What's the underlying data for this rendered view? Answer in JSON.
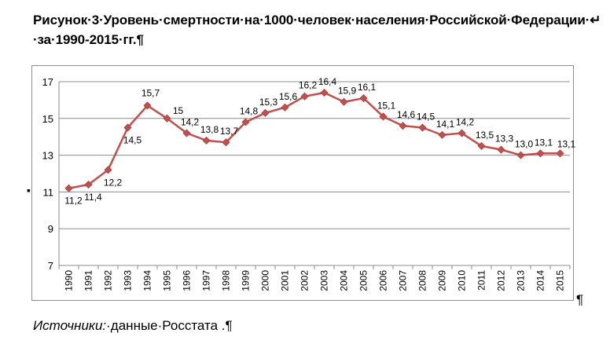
{
  "title": {
    "line1": "Рисунок·3·Уровень·смертности·на·1000·человек·населения·Российской·Федерации·↵",
    "line2": "·за·1990-2015·гг.¶"
  },
  "source": {
    "label": "Источники:",
    "text": "·данные·Росстата .¶"
  },
  "page_marks": {
    "pilcrow": "¶",
    "bullet": "▪"
  },
  "chart_data": {
    "type": "line",
    "title": "",
    "xlabel": "",
    "ylabel": "",
    "ylim": [
      7,
      17
    ],
    "yticks": [
      7,
      9,
      11,
      13,
      15,
      17
    ],
    "grid": true,
    "legend": "none",
    "line_color": "#c0504d",
    "categories": [
      "1990",
      "1991",
      "1992",
      "1993",
      "1994",
      "1995",
      "1996",
      "1997",
      "1998",
      "1999",
      "2000",
      "2001",
      "2002",
      "2003",
      "2004",
      "2005",
      "2006",
      "2007",
      "2008",
      "2009",
      "2010",
      "2011",
      "2012",
      "2013",
      "2014",
      "2015"
    ],
    "series": [
      {
        "values": [
          11.2,
          11.4,
          12.2,
          14.5,
          15.7,
          15,
          14.2,
          13.8,
          13.7,
          14.8,
          15.3,
          15.6,
          16.2,
          16.4,
          15.9,
          16.1,
          15.1,
          14.6,
          14.5,
          14.1,
          14.2,
          13.5,
          13.3,
          13.0,
          13.1,
          13.1
        ],
        "labels": [
          "11,2",
          "11,4",
          "12,2",
          "14,5",
          "15,7",
          "15",
          "14,2",
          "13,8",
          "13,7",
          "14,8",
          "15,3",
          "15,6",
          "16,2",
          "16,4",
          "15,9",
          "16,1",
          "15,1",
          "14,6",
          "14,5",
          "14,1",
          "14,2",
          "13,5",
          "13,3",
          "13,0",
          "13,1",
          "13,1"
        ]
      }
    ]
  }
}
